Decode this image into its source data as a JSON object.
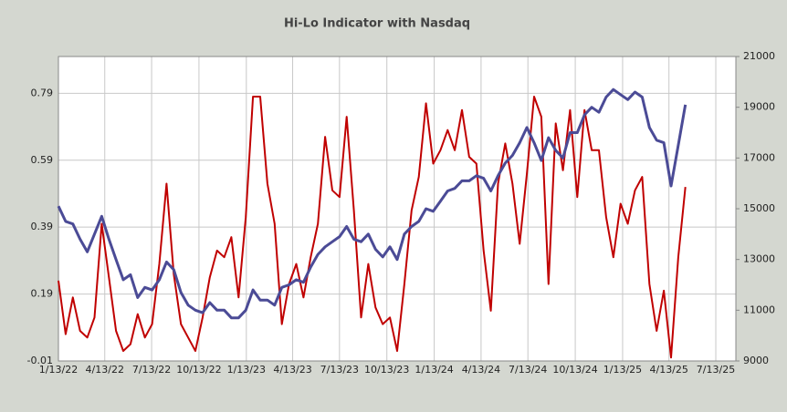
{
  "chart_data": {
    "type": "line",
    "title": "Hi-Lo Indicator with Nasdaq",
    "x": [
      "2022-01-13",
      "2022-01-27",
      "2022-02-10",
      "2022-02-24",
      "2022-03-10",
      "2022-03-24",
      "2022-04-07",
      "2022-04-21",
      "2022-05-05",
      "2022-05-19",
      "2022-06-02",
      "2022-06-16",
      "2022-06-30",
      "2022-07-14",
      "2022-07-28",
      "2022-08-11",
      "2022-08-25",
      "2022-09-08",
      "2022-09-22",
      "2022-10-06",
      "2022-10-20",
      "2022-11-03",
      "2022-11-17",
      "2022-12-01",
      "2022-12-15",
      "2022-12-29",
      "2023-01-12",
      "2023-01-26",
      "2023-02-09",
      "2023-02-23",
      "2023-03-09",
      "2023-03-23",
      "2023-04-06",
      "2023-04-20",
      "2023-05-04",
      "2023-05-18",
      "2023-06-01",
      "2023-06-15",
      "2023-06-29",
      "2023-07-13",
      "2023-07-27",
      "2023-08-10",
      "2023-08-24",
      "2023-09-07",
      "2023-09-21",
      "2023-10-05",
      "2023-10-19",
      "2023-11-02",
      "2023-11-16",
      "2023-11-30",
      "2023-12-14",
      "2023-12-28",
      "2024-01-11",
      "2024-01-25",
      "2024-02-08",
      "2024-02-22",
      "2024-03-07",
      "2024-03-21",
      "2024-04-04",
      "2024-04-18",
      "2024-05-02",
      "2024-05-16",
      "2024-05-30",
      "2024-06-13",
      "2024-06-27",
      "2024-07-11",
      "2024-07-25",
      "2024-08-08",
      "2024-08-22",
      "2024-09-05",
      "2024-09-19",
      "2024-10-03",
      "2024-10-17",
      "2024-10-31",
      "2024-11-14",
      "2024-11-28",
      "2024-12-12",
      "2024-12-26",
      "2025-01-09",
      "2025-01-23",
      "2025-02-06",
      "2025-02-20",
      "2025-03-06",
      "2025-03-20",
      "2025-04-03",
      "2025-04-17",
      "2025-05-01",
      "2025-05-15"
    ],
    "series": [
      {
        "color": "#c00000",
        "values": [
          0.23,
          0.07,
          0.18,
          0.08,
          0.06,
          0.12,
          0.4,
          0.24,
          0.08,
          0.02,
          0.04,
          0.13,
          0.06,
          0.1,
          0.28,
          0.52,
          0.25,
          0.1,
          0.06,
          0.02,
          0.12,
          0.24,
          0.32,
          0.3,
          0.36,
          0.18,
          0.42,
          0.78,
          0.78,
          0.52,
          0.4,
          0.1,
          0.22,
          0.28,
          0.18,
          0.3,
          0.4,
          0.66,
          0.5,
          0.48,
          0.72,
          0.44,
          0.12,
          0.28,
          0.15,
          0.1,
          0.12,
          0.02,
          0.22,
          0.44,
          0.54,
          0.76,
          0.58,
          0.62,
          0.68,
          0.62,
          0.74,
          0.6,
          0.58,
          0.32,
          0.14,
          0.52,
          0.64,
          0.52,
          0.34,
          0.55,
          0.78,
          0.72,
          0.22,
          0.7,
          0.56,
          0.74,
          0.48,
          0.74,
          0.62,
          0.62,
          0.42,
          0.3,
          0.46,
          0.4,
          0.5,
          0.54,
          0.22,
          0.08,
          0.2,
          0.0,
          0.3,
          0.51
        ]
      },
      {
        "color": "#4b4b96",
        "axis": "y2",
        "values": [
          15100,
          14500,
          14400,
          13800,
          13300,
          14000,
          14700,
          13800,
          13000,
          12200,
          12400,
          11500,
          11900,
          11800,
          12200,
          12900,
          12600,
          11700,
          11200,
          11000,
          10900,
          11300,
          11000,
          11000,
          10700,
          10700,
          11000,
          11800,
          11400,
          11400,
          11200,
          11900,
          12000,
          12200,
          12100,
          12700,
          13200,
          13500,
          13700,
          13900,
          14300,
          13800,
          13700,
          14000,
          13400,
          13100,
          13500,
          13000,
          14000,
          14300,
          14500,
          15000,
          14900,
          15300,
          15700,
          15800,
          16100,
          16100,
          16300,
          16200,
          15700,
          16300,
          16800,
          17100,
          17600,
          18200,
          17600,
          16900,
          17800,
          17300,
          17000,
          18000,
          18000,
          18700,
          19000,
          18800,
          19400,
          19700,
          19500,
          19300,
          19600,
          19400,
          18200,
          17700,
          17600,
          15900,
          17500,
          19100
        ]
      }
    ],
    "xlim": [
      "2022-01-13",
      "2025-08-21"
    ],
    "xticks": [
      {
        "value": "2022-01-13",
        "label": "1/13/22"
      },
      {
        "value": "2022-04-13",
        "label": "4/13/22"
      },
      {
        "value": "2022-07-13",
        "label": "7/13/22"
      },
      {
        "value": "2022-10-13",
        "label": "10/13/22"
      },
      {
        "value": "2023-01-13",
        "label": "1/13/23"
      },
      {
        "value": "2023-04-13",
        "label": "4/13/23"
      },
      {
        "value": "2023-07-13",
        "label": "7/13/23"
      },
      {
        "value": "2023-10-13",
        "label": "10/13/23"
      },
      {
        "value": "2024-01-13",
        "label": "1/13/24"
      },
      {
        "value": "2024-04-13",
        "label": "4/13/24"
      },
      {
        "value": "2024-07-13",
        "label": "7/13/24"
      },
      {
        "value": "2024-10-13",
        "label": "10/13/24"
      },
      {
        "value": "2025-01-13",
        "label": "1/13/25"
      },
      {
        "value": "2025-04-13",
        "label": "4/13/25"
      },
      {
        "value": "2025-07-13",
        "label": "7/13/25"
      }
    ],
    "ylim": [
      -0.01,
      0.9
    ],
    "yticks": [
      -0.01,
      0.19,
      0.39,
      0.59,
      0.79
    ],
    "y2lim": [
      9000,
      21000
    ],
    "y2ticks": [
      9000,
      11000,
      13000,
      15000,
      17000,
      19000,
      21000
    ],
    "grid": true
  }
}
